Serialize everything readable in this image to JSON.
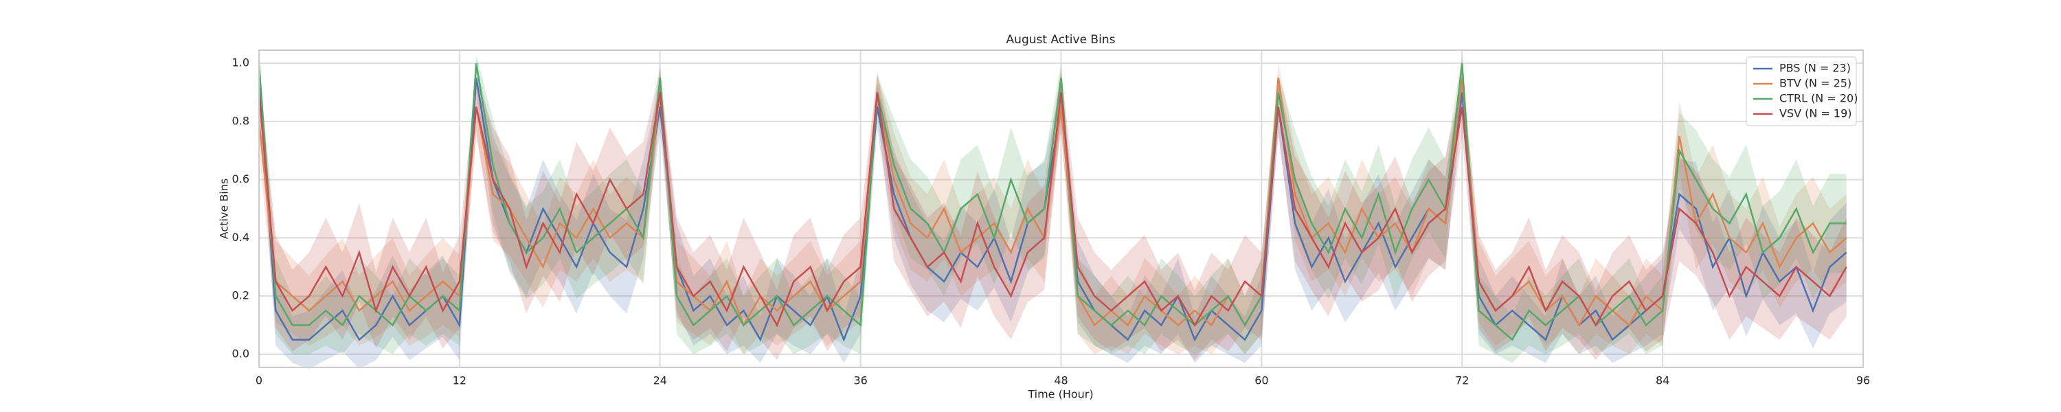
{
  "chart_data": {
    "type": "line",
    "title": "August Active Bins",
    "xlabel": "Time (Hour)",
    "ylabel": "Active Bins",
    "x": [
      0,
      1,
      2,
      3,
      4,
      5,
      6,
      7,
      8,
      9,
      10,
      11,
      12,
      13,
      14,
      15,
      16,
      17,
      18,
      19,
      20,
      21,
      22,
      23,
      24,
      25,
      26,
      27,
      28,
      29,
      30,
      31,
      32,
      33,
      34,
      35,
      36,
      37,
      38,
      39,
      40,
      41,
      42,
      43,
      44,
      45,
      46,
      47,
      48,
      49,
      50,
      51,
      52,
      53,
      54,
      55,
      56,
      57,
      58,
      59,
      60,
      61,
      62,
      63,
      64,
      65,
      66,
      67,
      68,
      69,
      70,
      71,
      72,
      73,
      74,
      75,
      76,
      77,
      78,
      79,
      80,
      81,
      82,
      83,
      84,
      85,
      86,
      87,
      88,
      89,
      90,
      91,
      92,
      93,
      94,
      95
    ],
    "xlim": [
      0,
      96
    ],
    "xticks": [
      0,
      12,
      24,
      36,
      48,
      60,
      72,
      84,
      96
    ],
    "ylim": [
      -0.045,
      1.045
    ],
    "yticks": [
      {
        "value": 0,
        "label": "0.0"
      },
      0.2,
      0.4,
      0.6,
      0.8,
      {
        "value": 1,
        "label": "1.0"
      }
    ],
    "grid": true,
    "legend": "upper right",
    "series": [
      {
        "name": "PBS (N = 23)",
        "color": "#4c72b0",
        "values": [
          0.95,
          0.15,
          0.05,
          0.05,
          0.1,
          0.15,
          0.05,
          0.1,
          0.2,
          0.1,
          0.15,
          0.2,
          0.1,
          0.95,
          0.6,
          0.45,
          0.35,
          0.5,
          0.4,
          0.3,
          0.45,
          0.35,
          0.3,
          0.5,
          0.85,
          0.3,
          0.15,
          0.2,
          0.1,
          0.15,
          0.05,
          0.2,
          0.15,
          0.1,
          0.2,
          0.05,
          0.2,
          0.85,
          0.55,
          0.4,
          0.3,
          0.25,
          0.35,
          0.3,
          0.4,
          0.25,
          0.45,
          0.5,
          0.85,
          0.25,
          0.15,
          0.1,
          0.05,
          0.15,
          0.1,
          0.2,
          0.05,
          0.15,
          0.1,
          0.05,
          0.15,
          0.85,
          0.45,
          0.3,
          0.4,
          0.25,
          0.35,
          0.45,
          0.3,
          0.4,
          0.5,
          0.45,
          0.9,
          0.2,
          0.1,
          0.15,
          0.1,
          0.05,
          0.2,
          0.1,
          0.15,
          0.05,
          0.1,
          0.15,
          0.2,
          0.55,
          0.5,
          0.3,
          0.4,
          0.2,
          0.35,
          0.25,
          0.3,
          0.15,
          0.3,
          0.35
        ],
        "error": [
          0.05,
          0.12,
          0.08,
          0.1,
          0.12,
          0.14,
          0.1,
          0.12,
          0.14,
          0.12,
          0.13,
          0.14,
          0.12,
          0.05,
          0.15,
          0.16,
          0.15,
          0.17,
          0.15,
          0.16,
          0.17,
          0.15,
          0.16,
          0.17,
          0.08,
          0.15,
          0.12,
          0.13,
          0.1,
          0.12,
          0.08,
          0.13,
          0.12,
          0.1,
          0.13,
          0.08,
          0.13,
          0.08,
          0.15,
          0.16,
          0.15,
          0.14,
          0.16,
          0.15,
          0.17,
          0.14,
          0.17,
          0.16,
          0.08,
          0.14,
          0.12,
          0.1,
          0.08,
          0.12,
          0.1,
          0.13,
          0.08,
          0.12,
          0.1,
          0.08,
          0.12,
          0.08,
          0.16,
          0.15,
          0.17,
          0.14,
          0.16,
          0.17,
          0.15,
          0.16,
          0.17,
          0.16,
          0.06,
          0.13,
          0.1,
          0.12,
          0.1,
          0.08,
          0.13,
          0.1,
          0.12,
          0.08,
          0.1,
          0.12,
          0.13,
          0.12,
          0.16,
          0.15,
          0.17,
          0.14,
          0.16,
          0.15,
          0.16,
          0.13,
          0.16,
          0.17
        ]
      },
      {
        "name": "BTV (N = 25)",
        "color": "#dd8452",
        "values": [
          0.8,
          0.25,
          0.2,
          0.15,
          0.2,
          0.25,
          0.15,
          0.2,
          0.25,
          0.15,
          0.2,
          0.25,
          0.2,
          0.85,
          0.55,
          0.5,
          0.4,
          0.3,
          0.45,
          0.4,
          0.5,
          0.4,
          0.45,
          0.4,
          0.9,
          0.25,
          0.2,
          0.15,
          0.25,
          0.1,
          0.2,
          0.15,
          0.2,
          0.25,
          0.15,
          0.2,
          0.25,
          0.9,
          0.6,
          0.45,
          0.4,
          0.5,
          0.35,
          0.4,
          0.45,
          0.35,
          0.5,
          0.4,
          0.85,
          0.2,
          0.1,
          0.15,
          0.1,
          0.2,
          0.15,
          0.1,
          0.15,
          0.1,
          0.2,
          0.1,
          0.2,
          0.95,
          0.55,
          0.4,
          0.45,
          0.35,
          0.5,
          0.4,
          0.45,
          0.35,
          0.5,
          0.45,
          0.95,
          0.25,
          0.15,
          0.2,
          0.25,
          0.15,
          0.2,
          0.1,
          0.2,
          0.15,
          0.1,
          0.2,
          0.15,
          0.75,
          0.45,
          0.55,
          0.4,
          0.35,
          0.45,
          0.3,
          0.4,
          0.45,
          0.35,
          0.4
        ],
        "error": [
          0.1,
          0.14,
          0.13,
          0.12,
          0.14,
          0.15,
          0.12,
          0.14,
          0.15,
          0.12,
          0.14,
          0.15,
          0.14,
          0.08,
          0.16,
          0.16,
          0.15,
          0.14,
          0.16,
          0.15,
          0.17,
          0.15,
          0.16,
          0.15,
          0.06,
          0.14,
          0.13,
          0.12,
          0.14,
          0.1,
          0.13,
          0.12,
          0.13,
          0.14,
          0.12,
          0.13,
          0.14,
          0.06,
          0.16,
          0.16,
          0.15,
          0.17,
          0.15,
          0.15,
          0.16,
          0.15,
          0.17,
          0.15,
          0.08,
          0.13,
          0.1,
          0.12,
          0.1,
          0.13,
          0.12,
          0.1,
          0.12,
          0.1,
          0.13,
          0.1,
          0.13,
          0.05,
          0.16,
          0.15,
          0.16,
          0.15,
          0.17,
          0.15,
          0.16,
          0.15,
          0.17,
          0.16,
          0.05,
          0.14,
          0.12,
          0.13,
          0.14,
          0.12,
          0.13,
          0.1,
          0.13,
          0.12,
          0.1,
          0.13,
          0.12,
          0.12,
          0.16,
          0.17,
          0.15,
          0.15,
          0.16,
          0.14,
          0.15,
          0.16,
          0.15,
          0.15
        ]
      },
      {
        "name": "CTRL (N = 20)",
        "color": "#55a868",
        "values": [
          1.0,
          0.2,
          0.1,
          0.1,
          0.15,
          0.1,
          0.2,
          0.15,
          0.1,
          0.2,
          0.15,
          0.2,
          0.15,
          1.0,
          0.65,
          0.45,
          0.35,
          0.4,
          0.5,
          0.35,
          0.4,
          0.45,
          0.5,
          0.4,
          0.95,
          0.2,
          0.1,
          0.15,
          0.2,
          0.1,
          0.15,
          0.2,
          0.1,
          0.15,
          0.2,
          0.15,
          0.1,
          0.9,
          0.65,
          0.5,
          0.45,
          0.35,
          0.5,
          0.55,
          0.4,
          0.6,
          0.45,
          0.5,
          0.95,
          0.2,
          0.15,
          0.1,
          0.15,
          0.1,
          0.2,
          0.15,
          0.1,
          0.15,
          0.2,
          0.1,
          0.2,
          0.9,
          0.6,
          0.45,
          0.35,
          0.5,
          0.4,
          0.55,
          0.35,
          0.5,
          0.6,
          0.5,
          1.0,
          0.15,
          0.1,
          0.05,
          0.15,
          0.1,
          0.15,
          0.2,
          0.1,
          0.15,
          0.2,
          0.1,
          0.15,
          0.7,
          0.6,
          0.5,
          0.45,
          0.55,
          0.35,
          0.4,
          0.5,
          0.35,
          0.45,
          0.45
        ],
        "error": [
          0.03,
          0.13,
          0.1,
          0.1,
          0.12,
          0.1,
          0.13,
          0.12,
          0.1,
          0.13,
          0.12,
          0.13,
          0.12,
          0.03,
          0.16,
          0.17,
          0.16,
          0.16,
          0.17,
          0.16,
          0.16,
          0.17,
          0.17,
          0.16,
          0.05,
          0.13,
          0.1,
          0.12,
          0.13,
          0.1,
          0.12,
          0.13,
          0.1,
          0.12,
          0.13,
          0.12,
          0.1,
          0.06,
          0.16,
          0.17,
          0.16,
          0.15,
          0.17,
          0.17,
          0.16,
          0.18,
          0.16,
          0.17,
          0.05,
          0.13,
          0.12,
          0.1,
          0.12,
          0.1,
          0.13,
          0.12,
          0.1,
          0.12,
          0.13,
          0.1,
          0.13,
          0.06,
          0.17,
          0.16,
          0.16,
          0.17,
          0.16,
          0.17,
          0.16,
          0.17,
          0.18,
          0.17,
          0.03,
          0.12,
          0.1,
          0.08,
          0.12,
          0.1,
          0.12,
          0.13,
          0.1,
          0.12,
          0.13,
          0.1,
          0.12,
          0.13,
          0.17,
          0.17,
          0.16,
          0.17,
          0.16,
          0.16,
          0.17,
          0.16,
          0.17,
          0.17
        ]
      },
      {
        "name": "VSV (N = 19)",
        "color": "#c44e52",
        "values": [
          0.9,
          0.25,
          0.15,
          0.2,
          0.3,
          0.2,
          0.35,
          0.15,
          0.3,
          0.2,
          0.3,
          0.15,
          0.25,
          0.85,
          0.6,
          0.5,
          0.3,
          0.45,
          0.35,
          0.55,
          0.45,
          0.6,
          0.5,
          0.55,
          0.9,
          0.3,
          0.2,
          0.25,
          0.15,
          0.3,
          0.2,
          0.1,
          0.25,
          0.3,
          0.15,
          0.25,
          0.3,
          0.9,
          0.5,
          0.4,
          0.3,
          0.35,
          0.25,
          0.45,
          0.3,
          0.2,
          0.35,
          0.4,
          0.9,
          0.3,
          0.2,
          0.15,
          0.2,
          0.25,
          0.15,
          0.2,
          0.1,
          0.2,
          0.15,
          0.25,
          0.2,
          0.85,
          0.5,
          0.4,
          0.3,
          0.45,
          0.35,
          0.4,
          0.5,
          0.35,
          0.45,
          0.5,
          0.85,
          0.25,
          0.15,
          0.2,
          0.3,
          0.15,
          0.25,
          0.2,
          0.1,
          0.2,
          0.25,
          0.15,
          0.2,
          0.5,
          0.45,
          0.35,
          0.2,
          0.3,
          0.25,
          0.2,
          0.3,
          0.25,
          0.2,
          0.3
        ],
        "error": [
          0.08,
          0.16,
          0.14,
          0.15,
          0.17,
          0.15,
          0.17,
          0.13,
          0.17,
          0.15,
          0.17,
          0.13,
          0.16,
          0.1,
          0.18,
          0.18,
          0.16,
          0.18,
          0.17,
          0.18,
          0.18,
          0.18,
          0.18,
          0.18,
          0.08,
          0.17,
          0.15,
          0.16,
          0.14,
          0.17,
          0.15,
          0.12,
          0.16,
          0.17,
          0.14,
          0.16,
          0.17,
          0.07,
          0.18,
          0.18,
          0.17,
          0.17,
          0.16,
          0.18,
          0.17,
          0.15,
          0.17,
          0.18,
          0.08,
          0.17,
          0.15,
          0.14,
          0.15,
          0.16,
          0.14,
          0.15,
          0.12,
          0.15,
          0.14,
          0.16,
          0.15,
          0.1,
          0.18,
          0.18,
          0.17,
          0.18,
          0.17,
          0.18,
          0.18,
          0.17,
          0.18,
          0.18,
          0.1,
          0.16,
          0.14,
          0.15,
          0.17,
          0.14,
          0.16,
          0.15,
          0.12,
          0.15,
          0.16,
          0.14,
          0.15,
          0.18,
          0.18,
          0.17,
          0.15,
          0.17,
          0.16,
          0.15,
          0.17,
          0.16,
          0.15,
          0.17
        ]
      }
    ]
  }
}
